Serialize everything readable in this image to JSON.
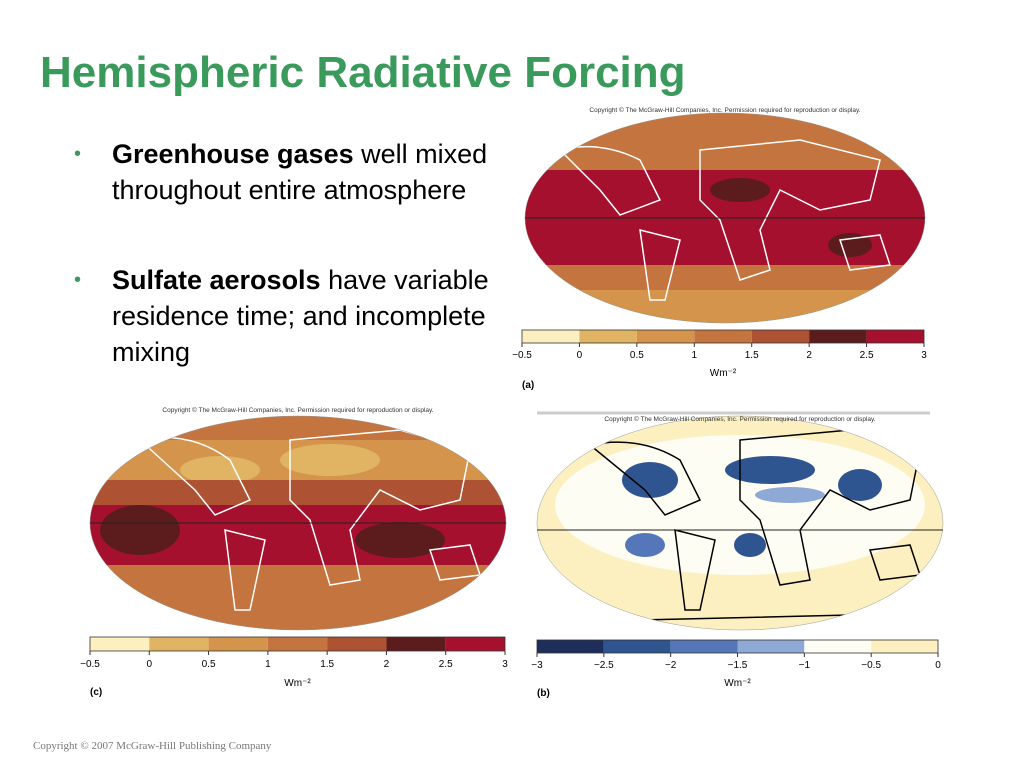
{
  "header": {
    "title": "Hemispheric Radiative Forcing"
  },
  "bullets": [
    {
      "bold": "Greenhouse gases",
      "text": "well mixed throughout entire atmosphere"
    },
    {
      "bold": "Sulfate aerosols",
      "text": "have variable residence time; and incomplete mixing"
    }
  ],
  "figures": [
    {
      "copyright": "Copyright © The McGraw-Hill Companies, Inc. Permission required for reproduction or display.",
      "panel": "(a)",
      "unit": "Wm⁻²",
      "colorbar": {
        "ticks": [
          "−0.5",
          "0",
          "0.5",
          "1",
          "1.5",
          "2",
          "2.5",
          "3"
        ],
        "colors": [
          "#fdf0c0",
          "#e0b462",
          "#d4944c",
          "#c4743e",
          "#ad5233",
          "#5c1c1e",
          "#a4102e"
        ]
      }
    },
    {
      "copyright": "Copyright © The McGraw-Hill Companies, Inc. Permission required for reproduction or display.",
      "panel": "(b)",
      "unit": "Wm⁻²",
      "colorbar": {
        "ticks": [
          "−3",
          "−2.5",
          "−2",
          "−1.5",
          "−1",
          "−0.5",
          "0"
        ],
        "colors": [
          "#1d2e5a",
          "#2e5590",
          "#5576b8",
          "#8fa9d6",
          "#fefdf4",
          "#fdf0c0"
        ]
      }
    },
    {
      "copyright": "Copyright © The McGraw-Hill Companies, Inc. Permission required for reproduction or display.",
      "panel": "(c)",
      "unit": "Wm⁻²",
      "colorbar": {
        "ticks": [
          "−0.5",
          "0",
          "0.5",
          "1",
          "1.5",
          "2",
          "2.5",
          "3"
        ],
        "colors": [
          "#fdf0c0",
          "#e0b462",
          "#d4944c",
          "#c4743e",
          "#ad5233",
          "#5c1c1e",
          "#a4102e"
        ]
      }
    }
  ],
  "footer": {
    "copyright": "Copyright © 2007 McGraw-Hill Publishing Company"
  }
}
